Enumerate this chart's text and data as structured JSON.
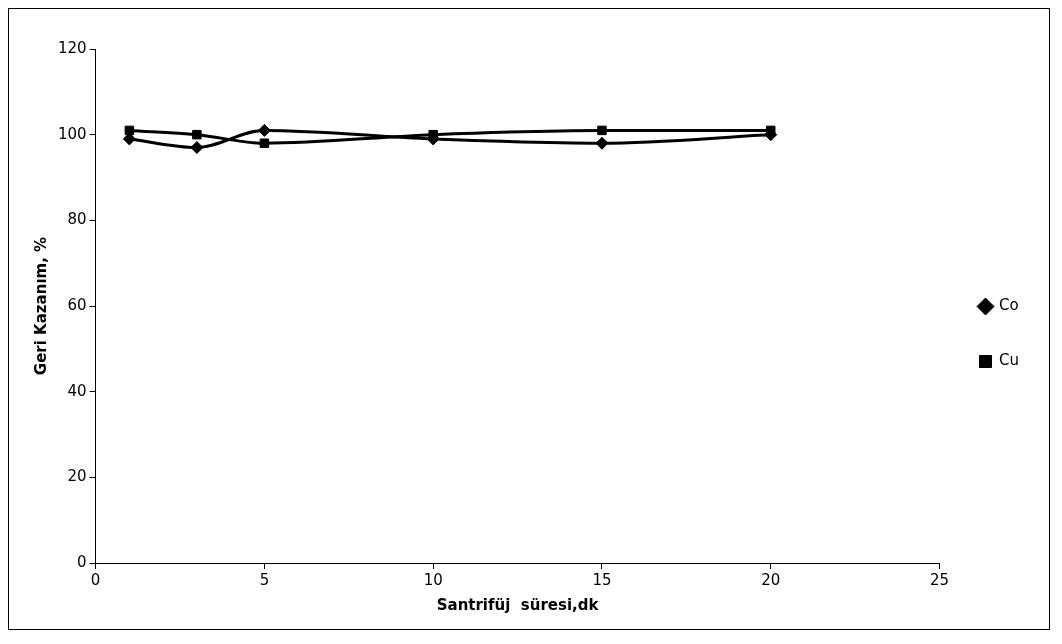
{
  "chart_data": {
    "type": "line",
    "xlabel": "Santrifüj  süresi,dk",
    "ylabel": "Geri Kazanım, %",
    "x": [
      1,
      3,
      5,
      10,
      15,
      20
    ],
    "series": [
      {
        "name": "Co",
        "color": "#000000",
        "marker": "diamond",
        "values": [
          99,
          97,
          101,
          99,
          98,
          100
        ]
      },
      {
        "name": "Cu",
        "color": "#000000",
        "marker": "square",
        "values": [
          101,
          100,
          98,
          100,
          101,
          101
        ]
      }
    ],
    "xlim": [
      0,
      25
    ],
    "xticks": [
      0,
      5,
      10,
      15,
      20,
      25
    ],
    "ylim": [
      0,
      120
    ],
    "yticks": [
      0,
      20,
      40,
      60,
      80,
      100,
      120
    ],
    "grid": false,
    "legend": "right"
  }
}
